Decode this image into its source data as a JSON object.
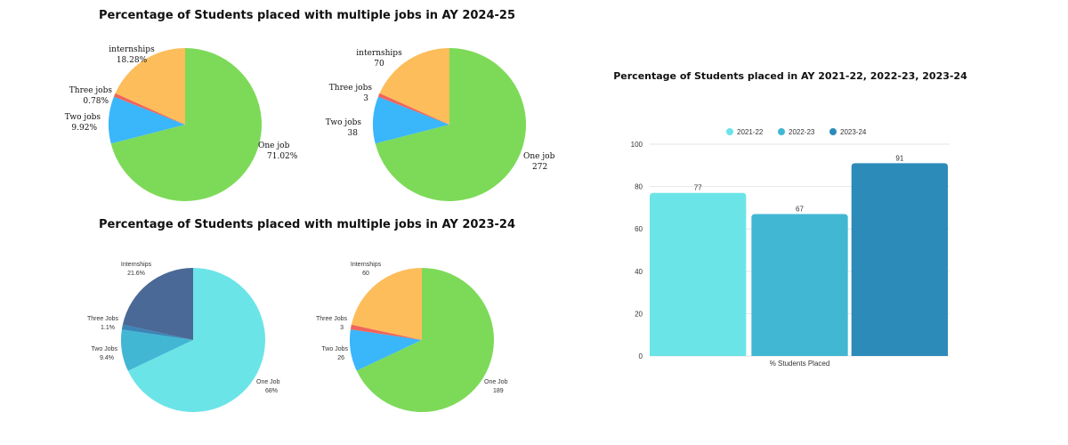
{
  "chart_data": [
    {
      "type": "pie",
      "title": "Percentage of Students placed with multiple jobs in AY 2024-25",
      "slices": [
        {
          "label": "One job",
          "value_text": "71.02%",
          "value": 71.02,
          "color": "#7dda58"
        },
        {
          "label": "Two jobs",
          "value_text": "9.92%",
          "value": 9.92,
          "color": "#3ab6fb"
        },
        {
          "label": "Three jobs",
          "value_text": "0.78%",
          "value": 0.78,
          "color": "#f0645b"
        },
        {
          "label": "internships",
          "value_text": "18.28%",
          "value": 18.28,
          "color": "#fdbd5b"
        }
      ]
    },
    {
      "type": "pie",
      "title": "",
      "slices": [
        {
          "label": "One job",
          "value_text": "272",
          "value": 272,
          "color": "#7dda58"
        },
        {
          "label": "Two jobs",
          "value_text": "38",
          "value": 38,
          "color": "#3ab6fb"
        },
        {
          "label": "Three jobs",
          "value_text": "3",
          "value": 3,
          "color": "#f0645b"
        },
        {
          "label": "internships",
          "value_text": "70",
          "value": 70,
          "color": "#fdbd5b"
        }
      ]
    },
    {
      "type": "pie",
      "title": "Percentage of Students placed with multiple jobs in AY 2023-24",
      "slices": [
        {
          "label": "One Job",
          "value_text": "68%",
          "value": 68,
          "color": "#6be4e8"
        },
        {
          "label": "Two Jobs",
          "value_text": "9.4%",
          "value": 9.4,
          "color": "#42b7d4"
        },
        {
          "label": "Three Jobs",
          "value_text": "1.1%",
          "value": 1.1,
          "color": "#3a86b6"
        },
        {
          "label": "Internships",
          "value_text": "21.6%",
          "value": 21.6,
          "color": "#4b6996"
        }
      ]
    },
    {
      "type": "pie",
      "title": "",
      "slices": [
        {
          "label": "One Job",
          "value_text": "189",
          "value": 189,
          "color": "#7dda58"
        },
        {
          "label": "Two Jobs",
          "value_text": "26",
          "value": 26,
          "color": "#3ab6fb"
        },
        {
          "label": "Three Jobs",
          "value_text": "3",
          "value": 3,
          "color": "#f0645b"
        },
        {
          "label": "Internships",
          "value_text": "60",
          "value": 60,
          "color": "#fdbd5b"
        }
      ]
    },
    {
      "type": "bar",
      "title": "Percentage of Students placed in AY 2021-22, 2022-23, 2023-24",
      "xlabel": "% Students Placed",
      "ylabel": "",
      "ylim": [
        0,
        100
      ],
      "yticks": [
        0,
        20,
        40,
        60,
        80,
        100
      ],
      "grid": true,
      "legend_position": "top",
      "series": [
        {
          "name": "2021-22",
          "values": [
            77
          ],
          "color": "#6be4e8"
        },
        {
          "name": "2022-23",
          "values": [
            67
          ],
          "color": "#42b7d4"
        },
        {
          "name": "2023-24",
          "values": [
            91
          ],
          "color": "#2d8bb9"
        }
      ]
    }
  ]
}
